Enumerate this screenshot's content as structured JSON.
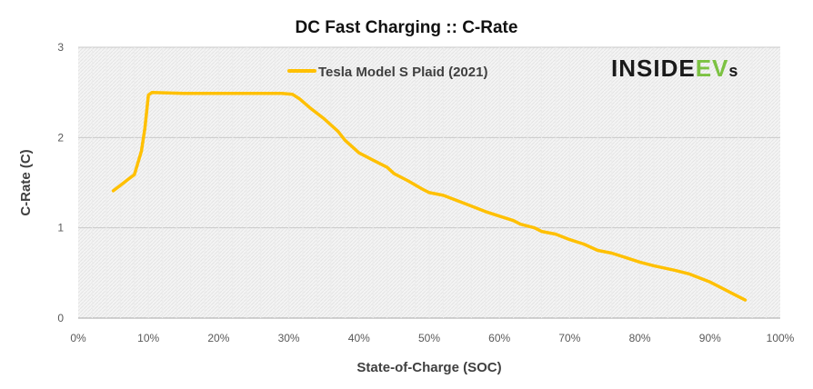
{
  "chart_data": {
    "type": "line",
    "title": "DC Fast Charging :: C-Rate",
    "xlabel": "State-of-Charge  (SOC)",
    "ylabel": "C-Rate (C)",
    "xlim": [
      0,
      100
    ],
    "ylim": [
      0,
      3
    ],
    "x_ticks": [
      "0%",
      "10%",
      "20%",
      "30%",
      "40%",
      "50%",
      "60%",
      "70%",
      "80%",
      "90%",
      "100%"
    ],
    "y_ticks": [
      "0",
      "1",
      "2",
      "3"
    ],
    "grid": true,
    "legend_position": "top-center",
    "series": [
      {
        "name": "Tesla Model S Plaid (2021)",
        "color": "#FFC000",
        "points": [
          [
            5,
            1.41
          ],
          [
            6,
            1.47
          ],
          [
            7,
            1.53
          ],
          [
            8,
            1.59
          ],
          [
            9,
            1.85
          ],
          [
            9.5,
            2.1
          ],
          [
            10,
            2.47
          ],
          [
            10.5,
            2.5
          ],
          [
            15,
            2.49
          ],
          [
            20,
            2.49
          ],
          [
            25,
            2.49
          ],
          [
            29,
            2.49
          ],
          [
            30.5,
            2.48
          ],
          [
            31.5,
            2.43
          ],
          [
            33,
            2.33
          ],
          [
            35,
            2.21
          ],
          [
            37,
            2.07
          ],
          [
            38,
            1.97
          ],
          [
            40,
            1.83
          ],
          [
            42,
            1.75
          ],
          [
            44,
            1.67
          ],
          [
            45,
            1.6
          ],
          [
            47,
            1.52
          ],
          [
            49,
            1.43
          ],
          [
            50,
            1.39
          ],
          [
            52,
            1.36
          ],
          [
            55,
            1.27
          ],
          [
            58,
            1.18
          ],
          [
            60,
            1.13
          ],
          [
            62,
            1.08
          ],
          [
            63,
            1.04
          ],
          [
            65,
            1.0
          ],
          [
            66,
            0.96
          ],
          [
            68,
            0.93
          ],
          [
            70,
            0.87
          ],
          [
            72,
            0.82
          ],
          [
            74,
            0.75
          ],
          [
            76,
            0.72
          ],
          [
            78,
            0.67
          ],
          [
            80,
            0.62
          ],
          [
            82,
            0.58
          ],
          [
            85,
            0.53
          ],
          [
            87,
            0.49
          ],
          [
            90,
            0.4
          ],
          [
            92,
            0.32
          ],
          [
            93.5,
            0.26
          ],
          [
            95,
            0.2
          ]
        ]
      }
    ]
  },
  "logo": {
    "text_dark": "INSIDE",
    "text_green": "EV",
    "text_small": "s"
  }
}
